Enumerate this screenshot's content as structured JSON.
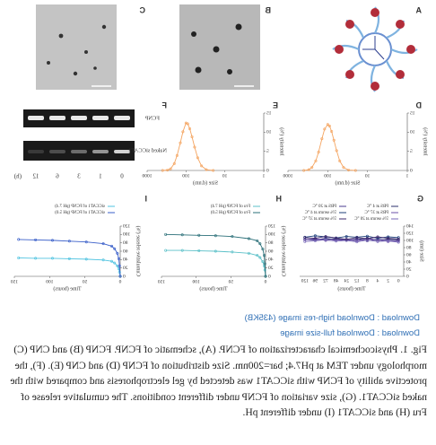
{
  "figure": {
    "panel_labels": [
      "A",
      "B",
      "C",
      "D",
      "E",
      "F",
      "G",
      "H",
      "I"
    ],
    "gel": {
      "rows": [
        "FCNP",
        "Naked siCCAT1"
      ],
      "lanes": [
        "0",
        "1",
        "3",
        "6",
        "12"
      ],
      "lane_unit": "(h)"
    }
  },
  "chart_data": [
    {
      "type": "line",
      "panel": "D",
      "xlabel": "Size (d.nm)",
      "ylabel": "Intensity (%)",
      "log_x": true,
      "x": [
        20,
        30,
        40,
        50,
        60,
        70,
        80,
        90,
        100,
        120,
        140,
        170,
        200,
        250,
        300,
        400
      ],
      "values": [
        0,
        0.1,
        0.8,
        2.5,
        5.2,
        7.9,
        10.2,
        11.6,
        12,
        10.8,
        8.3,
        4.8,
        2.5,
        0.8,
        0.2,
        0
      ],
      "color": "#f4a460",
      "xlim": [
        1,
        1000
      ],
      "xticks": [
        1,
        10,
        100,
        1000
      ],
      "ylim": [
        0,
        15
      ],
      "yticks": [
        0,
        5,
        10,
        15
      ]
    },
    {
      "type": "line",
      "panel": "E",
      "xlabel": "Size (d.nm)",
      "ylabel": "Intensity (%)",
      "log_x": true,
      "x": [
        20,
        30,
        40,
        50,
        60,
        70,
        80,
        90,
        100,
        120,
        140,
        170,
        200,
        250,
        300,
        400
      ],
      "values": [
        0,
        0.2,
        1.2,
        3.3,
        6.1,
        8.8,
        10.9,
        12.2,
        12.4,
        10.1,
        7.2,
        3.9,
        1.8,
        0.4,
        0.1,
        0
      ],
      "color": "#f4a460",
      "xlim": [
        1,
        1000
      ],
      "xticks": [
        1,
        10,
        100,
        1000
      ],
      "ylim": [
        0,
        15
      ],
      "yticks": [
        0,
        5,
        10,
        15
      ]
    },
    {
      "type": "line",
      "panel": "G",
      "xlabel": "Time (hours)",
      "ylabel": "Size (nm)",
      "categories": [
        "0",
        "2",
        "4",
        "8",
        "12",
        "24",
        "48",
        "72",
        "96",
        "120"
      ],
      "ylim": [
        0,
        140
      ],
      "yticks": [
        0,
        20,
        40,
        60,
        80,
        100,
        120,
        140
      ],
      "series": [
        {
          "name": "PBS at 4 °C",
          "color": "#2b2f6b",
          "values": [
            102,
            104,
            100,
            106,
            103,
            101,
            105,
            102,
            104,
            103
          ]
        },
        {
          "name": "PBS at 20 °C",
          "color": "#4a3b8f",
          "values": [
            98,
            101,
            103,
            99,
            104,
            100,
            102,
            106,
            101,
            103
          ]
        },
        {
          "name": "PBS at 37 °C",
          "color": "#6b4fa8",
          "values": [
            100,
            97,
            102,
            104,
            99,
            103,
            101,
            100,
            105,
            102
          ]
        },
        {
          "name": "5% serum at 4 °C",
          "color": "#1f3f7a",
          "values": [
            108,
            110,
            106,
            112,
            109,
            111,
            107,
            110,
            113,
            109
          ]
        },
        {
          "name": "5% serum at 20 °C",
          "color": "#7a6ab8",
          "values": [
            95,
            99,
            97,
            101,
            96,
            100,
            98,
            102,
            99,
            97
          ]
        },
        {
          "name": "5% serum at 37 °C",
          "color": "#3d2a6e",
          "values": [
            104,
            106,
            110,
            105,
            108,
            103,
            107,
            111,
            106,
            108
          ]
        }
      ]
    },
    {
      "type": "line",
      "panel": "H",
      "xlabel": "Time (hours)",
      "ylabel": "Cumulative release (%)",
      "x": [
        0,
        1,
        2,
        4,
        8,
        12,
        24,
        48,
        72,
        96,
        120,
        144
      ],
      "xlim": [
        0,
        150
      ],
      "xticks": [
        0,
        50,
        100,
        150
      ],
      "ylim": [
        0,
        120
      ],
      "yticks": [
        0,
        20,
        40,
        60,
        80,
        100,
        120
      ],
      "series": [
        {
          "name": "Fru of FCNP (pH 7.4)",
          "color": "#5bc0c8",
          "values": [
            0,
            15,
            25,
            35,
            45,
            50,
            55,
            58,
            60,
            61,
            62,
            62
          ]
        },
        {
          "name": "Fru of FCNP (pH 5.0)",
          "color": "#2a6f78",
          "values": [
            0,
            30,
            50,
            65,
            78,
            85,
            90,
            95,
            97,
            98,
            99,
            100
          ]
        }
      ]
    },
    {
      "type": "line",
      "panel": "I",
      "xlabel": "Time (hours)",
      "ylabel": "Cumulative release (%)",
      "x": [
        0,
        1,
        2,
        4,
        8,
        12,
        24,
        48,
        72,
        96,
        120,
        144
      ],
      "xlim": [
        0,
        150
      ],
      "xticks": [
        0,
        50,
        100,
        150
      ],
      "ylim": [
        0,
        120
      ],
      "yticks": [
        0,
        20,
        40,
        60,
        80,
        100,
        120
      ],
      "series": [
        {
          "name": "siCCAT1 of FCNP (pH 7.4)",
          "color": "#4fc3e0",
          "values": [
            0,
            10,
            18,
            25,
            32,
            36,
            39,
            41,
            42,
            43,
            43,
            44
          ]
        },
        {
          "name": "siCCAT1 of FCNP (pH 5.0)",
          "color": "#3a5fc9",
          "values": [
            0,
            25,
            42,
            55,
            66,
            72,
            78,
            82,
            84,
            86,
            87,
            88
          ]
        }
      ]
    }
  ],
  "links": [
    "Download : Download high-res image (435KB)",
    "Download : Download full-size image"
  ],
  "caption": "Fig. 1. Physicochemical characterization of FCNP. (A), schematic of FCNP. FCNP (B) and CNP (C) morphology under TEM at pH7.4; bar=200nm. Size distribution of FCNP (D) and CNP (E). (F), the protective ability of FCNP with siCCAT1 was detected by gel electrophoresis and compared with the naked siCCAT1. (G), size variation of FCNP under different conditions. The cumulative release of Fru (H) and siCCAT1 (I) under different pH."
}
